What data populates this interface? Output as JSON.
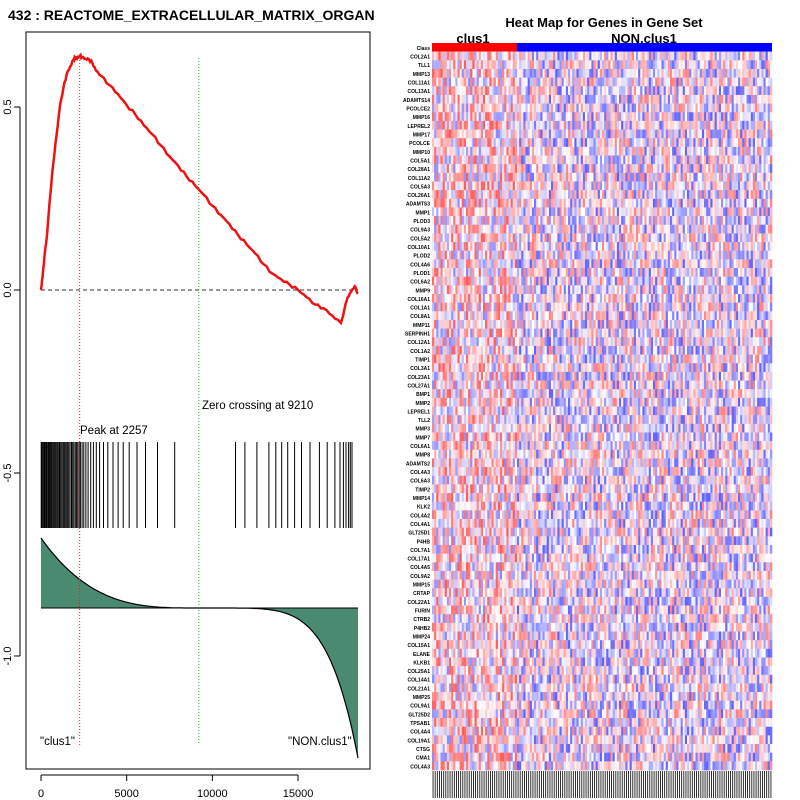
{
  "gsea": {
    "title": "432 : REACTOME_EXTRACELLULAR_MATRIX_ORGAN",
    "x_ticks": [
      0,
      5000,
      10000,
      15000
    ],
    "y_ticks": [
      0.5,
      0.0,
      -0.5,
      -1.0
    ],
    "y_tick_labels": [
      "0.5",
      "0.0",
      "-0.5",
      "-1.0"
    ],
    "peak_label": "Peak at 2257",
    "zero_label": "Zero crossing at 9210",
    "left_group_label": "\"clus1\"",
    "right_group_label": "\"NON.clus1\"",
    "colors": {
      "es": "#ee1111",
      "peak": "#dd2222",
      "zero": "#22aa22",
      "area": "#4a8a70"
    }
  },
  "heatmap": {
    "title": "Heat Map for Genes in Gene Set",
    "group1": "clus1",
    "group2": "NON.clus1",
    "genes": [
      "Class",
      "COL2A1",
      "TLL1",
      "MMP13",
      "COL11A1",
      "COL13A1",
      "ADAMTS14",
      "PCOLCE2",
      "MMP16",
      "LEPREL2",
      "MMP17",
      "PCOLCE",
      "MMP10",
      "COL5A1",
      "COL28A1",
      "COL11A2",
      "COL5A3",
      "COL26A1",
      "ADAMTS3",
      "MMP1",
      "PLOD3",
      "COL9A3",
      "COL5A2",
      "COL10A1",
      "PLOD2",
      "COL4A6",
      "PLOD1",
      "COL6A2",
      "MMP9",
      "COL16A1",
      "COL1A1",
      "COL8A1",
      "MMP11",
      "SERPINH1",
      "COL12A1",
      "COL1A2",
      "TIMP1",
      "COL3A1",
      "COL23A1",
      "COL27A1",
      "BMP1",
      "MMP2",
      "LEPREL1",
      "TLL2",
      "MMP3",
      "MMP7",
      "COL6A1",
      "MMP8",
      "ADAMTS2",
      "COL4A3",
      "COL6A3",
      "TIMP2",
      "MMP14",
      "KLK2",
      "COL4A2",
      "COL4A1",
      "GLT25D1",
      "P4HB",
      "COL7A1",
      "COL17A1",
      "COL4A5",
      "COL9A2",
      "MMP15",
      "CRTAP",
      "COL22A1",
      "FURIN",
      "CTRB2",
      "P4HB2",
      "MMP24",
      "COL15A1",
      "ELANE",
      "KLKB1",
      "COL25A1",
      "COL14A1",
      "COL21A1",
      "MMP25",
      "COL9A1",
      "GLT25D2",
      "TPSAB1",
      "COL4A4",
      "COL19A1",
      "CTSG",
      "CMA1",
      "COL4A3"
    ],
    "colors": {
      "group1": "#ff0000",
      "group2": "#0000ff"
    }
  },
  "chart_data": [
    {
      "type": "line",
      "title": "432 : REACTOME_EXTRACELLULAR_MATRIX_ORGAN",
      "xlabel": "",
      "ylabel": "",
      "xlim": [
        0,
        18500
      ],
      "ylim": [
        -1.25,
        0.66
      ],
      "series": [
        {
          "x": [
            0,
            100,
            200,
            350,
            500,
            700,
            900,
            1100,
            1300,
            1500,
            1700,
            1900,
            2000,
            2100,
            2257,
            2400,
            2600,
            2800,
            3000,
            3200,
            3500,
            4000,
            4500,
            5000,
            5500,
            6000,
            6500,
            7000,
            7500,
            8000,
            8500,
            9000,
            9500,
            10000,
            10500,
            11000,
            11500,
            12000,
            12500,
            13000,
            13500,
            14000,
            14500,
            15000,
            15500,
            16000,
            16500,
            17000,
            17500,
            17900,
            18100,
            18300,
            18500
          ],
          "y": [
            0.0,
            0.04,
            0.09,
            0.15,
            0.24,
            0.34,
            0.42,
            0.5,
            0.55,
            0.59,
            0.61,
            0.63,
            0.635,
            0.632,
            0.64,
            0.636,
            0.632,
            0.63,
            0.62,
            0.6,
            0.585,
            0.56,
            0.535,
            0.505,
            0.48,
            0.45,
            0.425,
            0.395,
            0.365,
            0.34,
            0.31,
            0.285,
            0.26,
            0.23,
            0.205,
            0.18,
            0.15,
            0.125,
            0.1,
            0.07,
            0.045,
            0.03,
            0.015,
            0.0,
            -0.02,
            -0.04,
            -0.05,
            -0.07,
            -0.09,
            -0.02,
            -0.005,
            0.01,
            -0.01
          ]
        }
      ],
      "peak_x": 2257,
      "zero_crossing_x": 9210,
      "hit_positions": [
        10,
        60,
        120,
        180,
        230,
        290,
        340,
        400,
        450,
        500,
        560,
        620,
        680,
        740,
        800,
        860,
        920,
        980,
        1050,
        1100,
        1160,
        1230,
        1300,
        1360,
        1420,
        1500,
        1560,
        1620,
        1700,
        1780,
        1850,
        1920,
        2000,
        2080,
        2150,
        2230,
        2300,
        2400,
        2500,
        2620,
        2750,
        2900,
        3060,
        3230,
        3420,
        3650,
        3900,
        4200,
        4500,
        4800,
        5150,
        5600,
        6100,
        6800,
        7800,
        11350,
        11900,
        12600,
        13300,
        13700,
        14050,
        14400,
        14800,
        15200,
        15700,
        16250,
        16700,
        17150,
        17450,
        17650,
        17800,
        17950,
        18050,
        18150
      ]
    },
    {
      "type": "heatmap",
      "title": "Heat Map for Genes in Gene Set",
      "rows": [
        "Class",
        "COL2A1",
        "TLL1",
        "MMP13",
        "COL11A1",
        "COL13A1",
        "ADAMTS14",
        "PCOLCE2",
        "MMP16",
        "LEPREL2",
        "MMP17",
        "PCOLCE",
        "MMP10",
        "COL5A1",
        "COL28A1",
        "COL11A2",
        "COL5A3",
        "COL26A1",
        "ADAMTS3",
        "MMP1",
        "PLOD3",
        "COL9A3",
        "COL5A2",
        "COL10A1",
        "PLOD2",
        "COL4A6",
        "PLOD1",
        "COL6A2",
        "MMP9",
        "COL16A1",
        "COL1A1",
        "COL8A1",
        "MMP11",
        "SERPINH1",
        "COL12A1",
        "COL1A2",
        "TIMP1",
        "COL3A1",
        "COL23A1",
        "COL27A1",
        "BMP1",
        "MMP2",
        "LEPREL1",
        "TLL2",
        "MMP3",
        "MMP7",
        "COL6A1",
        "MMP8",
        "ADAMTS2",
        "COL4A3",
        "COL6A3",
        "TIMP2",
        "MMP14",
        "KLK2",
        "COL4A2",
        "COL4A1",
        "GLT25D1",
        "P4HB",
        "COL7A1",
        "COL17A1",
        "COL4A5",
        "COL9A2",
        "MMP15",
        "CRTAP",
        "COL22A1",
        "FURIN",
        "CTRB2",
        "P4HB2",
        "MMP24",
        "COL15A1",
        "ELANE",
        "KLKB1",
        "COL25A1",
        "COL14A1",
        "COL21A1",
        "MMP25",
        "COL9A1",
        "GLT25D2",
        "TPSAB1",
        "COL4A4",
        "COL19A1",
        "CTSG",
        "CMA1",
        "COL4A3"
      ],
      "groups": [
        "clus1",
        "NON.clus1"
      ]
    }
  ]
}
